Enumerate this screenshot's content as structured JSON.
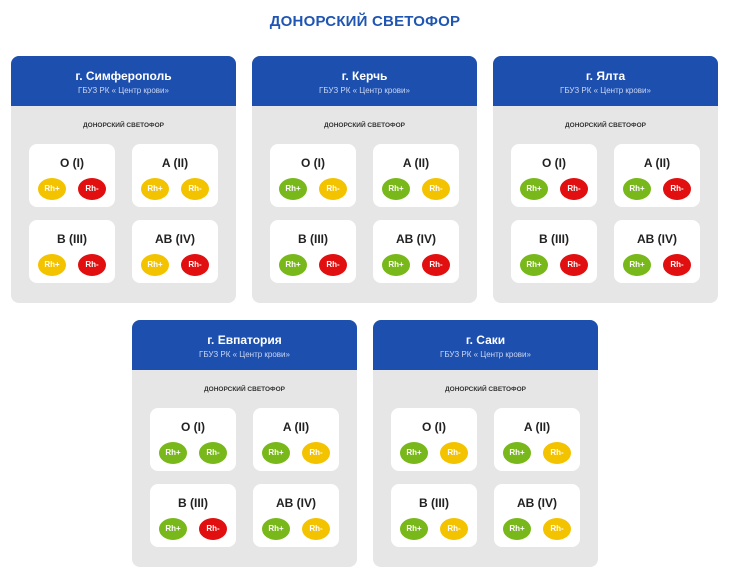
{
  "page": {
    "title": "ДОНОРСКИЙ СВЕТОФОР"
  },
  "colors": {
    "green": "#78b81a",
    "yellow": "#f4c300",
    "red": "#e10f0f",
    "header": "#1d4fae"
  },
  "cards": [
    {
      "city": "г. Симферополь",
      "org": "ГБУЗ РК « Центр крови»",
      "subtitle": "ДОНОРСКИЙ СВЕТОФОР",
      "groups": [
        {
          "name": "O (I)",
          "pos": "Rh+",
          "neg": "Rh-",
          "pos_status": "yellow",
          "neg_status": "red"
        },
        {
          "name": "A (II)",
          "pos": "Rh+",
          "neg": "Rh-",
          "pos_status": "yellow",
          "neg_status": "yellow"
        },
        {
          "name": "B (III)",
          "pos": "Rh+",
          "neg": "Rh-",
          "pos_status": "yellow",
          "neg_status": "red"
        },
        {
          "name": "AB (IV)",
          "pos": "Rh+",
          "neg": "Rh-",
          "pos_status": "yellow",
          "neg_status": "red"
        }
      ]
    },
    {
      "city": "г. Керчь",
      "org": "ГБУЗ РК « Центр крови»",
      "subtitle": "ДОНОРСКИЙ СВЕТОФОР",
      "groups": [
        {
          "name": "O (I)",
          "pos": "Rh+",
          "neg": "Rh-",
          "pos_status": "green",
          "neg_status": "yellow"
        },
        {
          "name": "A (II)",
          "pos": "Rh+",
          "neg": "Rh-",
          "pos_status": "green",
          "neg_status": "yellow"
        },
        {
          "name": "B (III)",
          "pos": "Rh+",
          "neg": "Rh-",
          "pos_status": "green",
          "neg_status": "red"
        },
        {
          "name": "AB (IV)",
          "pos": "Rh+",
          "neg": "Rh-",
          "pos_status": "green",
          "neg_status": "red"
        }
      ]
    },
    {
      "city": "г. Ялта",
      "org": "ГБУЗ РК « Центр крови»",
      "subtitle": "ДОНОРСКИЙ СВЕТОФОР",
      "groups": [
        {
          "name": "O (I)",
          "pos": "Rh+",
          "neg": "Rh-",
          "pos_status": "green",
          "neg_status": "red"
        },
        {
          "name": "A (II)",
          "pos": "Rh+",
          "neg": "Rh-",
          "pos_status": "green",
          "neg_status": "red"
        },
        {
          "name": "B (III)",
          "pos": "Rh+",
          "neg": "Rh-",
          "pos_status": "green",
          "neg_status": "red"
        },
        {
          "name": "AB (IV)",
          "pos": "Rh+",
          "neg": "Rh-",
          "pos_status": "green",
          "neg_status": "red"
        }
      ]
    },
    {
      "city": "г. Евпатория",
      "org": "ГБУЗ РК « Центр крови»",
      "subtitle": "ДОНОРСКИЙ СВЕТОФОР",
      "groups": [
        {
          "name": "O (I)",
          "pos": "Rh+",
          "neg": "Rh-",
          "pos_status": "green",
          "neg_status": "green"
        },
        {
          "name": "A (II)",
          "pos": "Rh+",
          "neg": "Rh-",
          "pos_status": "green",
          "neg_status": "yellow"
        },
        {
          "name": "B (III)",
          "pos": "Rh+",
          "neg": "Rh-",
          "pos_status": "green",
          "neg_status": "red"
        },
        {
          "name": "AB (IV)",
          "pos": "Rh+",
          "neg": "Rh-",
          "pos_status": "green",
          "neg_status": "yellow"
        }
      ]
    },
    {
      "city": "г. Саки",
      "org": "ГБУЗ РК « Центр крови»",
      "subtitle": "ДОНОРСКИЙ СВЕТОФОР",
      "groups": [
        {
          "name": "O (I)",
          "pos": "Rh+",
          "neg": "Rh-",
          "pos_status": "green",
          "neg_status": "yellow"
        },
        {
          "name": "A (II)",
          "pos": "Rh+",
          "neg": "Rh-",
          "pos_status": "green",
          "neg_status": "yellow"
        },
        {
          "name": "B (III)",
          "pos": "Rh+",
          "neg": "Rh-",
          "pos_status": "green",
          "neg_status": "yellow"
        },
        {
          "name": "AB (IV)",
          "pos": "Rh+",
          "neg": "Rh-",
          "pos_status": "green",
          "neg_status": "yellow"
        }
      ]
    }
  ]
}
